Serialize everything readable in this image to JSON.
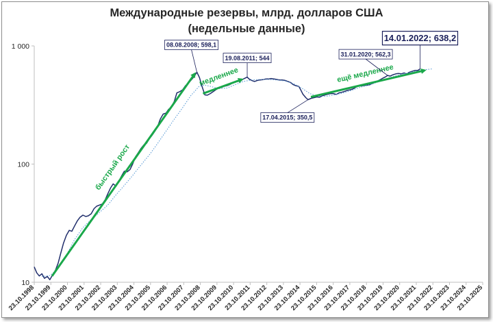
{
  "chart_data": {
    "type": "line",
    "title_line1": "Международные резервы, млрд. долларов США",
    "title_line2": "(недельные данные)",
    "y_scale": "log",
    "ylim": [
      10,
      1000
    ],
    "y_ticks": [
      {
        "value": 10,
        "label": "10"
      },
      {
        "value": 100,
        "label": "100"
      },
      {
        "value": 1000,
        "label": "1 000"
      }
    ],
    "x_range": [
      "1998-10-23",
      "2025-10-23"
    ],
    "x_tick_labels": [
      "23.10.1998",
      "23.10.1999",
      "23.10.2000",
      "23.10.2001",
      "23.10.2002",
      "23.10.2003",
      "23.10.2004",
      "23.10.2005",
      "23.10.2006",
      "23.10.2007",
      "23.10.2008",
      "23.10.2009",
      "23.10.2010",
      "23.10.2011",
      "23.10.2012",
      "23.10.2013",
      "23.10.2014",
      "23.10.2015",
      "23.10.2016",
      "23.10.2017",
      "23.10.2018",
      "23.10.2019",
      "23.10.2020",
      "23.10.2021",
      "23.10.2022",
      "23.10.2023",
      "23.10.2024",
      "23.10.2025"
    ],
    "series": [
      {
        "color": "#1f2d6b",
        "points": [
          [
            "1998-10-23",
            13.5
          ],
          [
            "1998-12-18",
            12.0
          ],
          [
            "1999-02-12",
            11.3
          ],
          [
            "1999-04-09",
            11.8
          ],
          [
            "1999-06-04",
            10.8
          ],
          [
            "1999-08-06",
            11.2
          ],
          [
            "1999-10-01",
            10.5
          ],
          [
            "1999-12-03",
            11.6
          ],
          [
            "2000-02-04",
            12.7
          ],
          [
            "2000-03-31",
            14.5
          ],
          [
            "2000-05-26",
            17.5
          ],
          [
            "2000-07-28",
            21.5
          ],
          [
            "2000-09-29",
            25.0
          ],
          [
            "2000-12-01",
            27.5
          ],
          [
            "2001-01-26",
            27.0
          ],
          [
            "2001-03-30",
            30.0
          ],
          [
            "2001-05-25",
            33.0
          ],
          [
            "2001-07-27",
            35.5
          ],
          [
            "2001-09-28",
            37.0
          ],
          [
            "2001-11-30",
            36.0
          ],
          [
            "2002-01-25",
            36.5
          ],
          [
            "2002-03-29",
            38.0
          ],
          [
            "2002-05-31",
            42.0
          ],
          [
            "2002-07-26",
            44.0
          ],
          [
            "2002-09-27",
            45.0
          ],
          [
            "2002-11-29",
            46.0
          ],
          [
            "2003-01-31",
            50.0
          ],
          [
            "2003-03-28",
            56.0
          ],
          [
            "2003-05-30",
            63.0
          ],
          [
            "2003-07-25",
            68.0
          ],
          [
            "2003-09-26",
            65.0
          ],
          [
            "2003-11-28",
            72.0
          ],
          [
            "2004-01-30",
            80.0
          ],
          [
            "2004-03-26",
            87.0
          ],
          [
            "2004-05-28",
            86.0
          ],
          [
            "2004-07-30",
            90.0
          ],
          [
            "2004-09-24",
            100.0
          ],
          [
            "2004-11-26",
            115.0
          ],
          [
            "2005-01-28",
            125.0
          ],
          [
            "2005-03-25",
            135.0
          ],
          [
            "2005-05-27",
            145.0
          ],
          [
            "2005-07-29",
            150.0
          ],
          [
            "2005-09-30",
            165.0
          ],
          [
            "2005-11-25",
            175.0
          ],
          [
            "2006-01-27",
            190.0
          ],
          [
            "2006-03-31",
            210.0
          ],
          [
            "2006-05-26",
            240.0
          ],
          [
            "2006-07-28",
            265.0
          ],
          [
            "2006-09-29",
            270.0
          ],
          [
            "2006-11-24",
            290.0
          ],
          [
            "2007-01-26",
            305.0
          ],
          [
            "2007-03-30",
            340.0
          ],
          [
            "2007-05-25",
            400.0
          ],
          [
            "2007-07-27",
            410.0
          ],
          [
            "2007-09-28",
            425.0
          ],
          [
            "2007-11-30",
            460.0
          ],
          [
            "2008-01-25",
            480.0
          ],
          [
            "2008-03-28",
            510.0
          ],
          [
            "2008-05-30",
            545.0
          ],
          [
            "2008-08-08",
            598.1
          ],
          [
            "2008-10-03",
            540.0
          ],
          [
            "2008-11-28",
            455.0
          ],
          [
            "2009-01-30",
            385.0
          ],
          [
            "2009-03-27",
            383.0
          ],
          [
            "2009-05-29",
            395.0
          ],
          [
            "2009-07-31",
            410.0
          ],
          [
            "2009-09-25",
            425.0
          ],
          [
            "2009-11-27",
            440.0
          ],
          [
            "2010-01-29",
            445.0
          ],
          [
            "2010-03-26",
            455.0
          ],
          [
            "2010-05-28",
            460.0
          ],
          [
            "2010-07-30",
            470.0
          ],
          [
            "2010-09-24",
            485.0
          ],
          [
            "2010-11-26",
            495.0
          ],
          [
            "2011-01-28",
            500.0
          ],
          [
            "2011-03-25",
            505.0
          ],
          [
            "2011-05-27",
            525.0
          ],
          [
            "2011-08-19",
            544.0
          ],
          [
            "2011-09-30",
            525.0
          ],
          [
            "2011-11-25",
            510.0
          ],
          [
            "2012-01-27",
            500.0
          ],
          [
            "2012-03-30",
            510.0
          ],
          [
            "2012-05-25",
            515.0
          ],
          [
            "2012-07-27",
            518.0
          ],
          [
            "2012-09-28",
            525.0
          ],
          [
            "2012-11-30",
            525.0
          ],
          [
            "2013-01-25",
            530.0
          ],
          [
            "2013-03-29",
            525.0
          ],
          [
            "2013-05-31",
            520.0
          ],
          [
            "2013-07-26",
            515.0
          ],
          [
            "2013-09-27",
            515.0
          ],
          [
            "2013-11-29",
            510.0
          ],
          [
            "2014-01-31",
            500.0
          ],
          [
            "2014-03-28",
            490.0
          ],
          [
            "2014-05-30",
            470.0
          ],
          [
            "2014-07-25",
            460.0
          ],
          [
            "2014-09-26",
            455.0
          ],
          [
            "2014-10-31",
            430.0
          ],
          [
            "2014-12-26",
            390.0
          ],
          [
            "2015-02-27",
            365.0
          ],
          [
            "2015-04-17",
            350.5
          ],
          [
            "2015-06-26",
            360.0
          ],
          [
            "2015-08-28",
            365.0
          ],
          [
            "2015-10-30",
            370.0
          ],
          [
            "2015-12-25",
            368.0
          ],
          [
            "2016-02-26",
            378.0
          ],
          [
            "2016-04-29",
            385.0
          ],
          [
            "2016-06-24",
            390.0
          ],
          [
            "2016-08-26",
            395.0
          ],
          [
            "2016-10-28",
            395.0
          ],
          [
            "2016-12-30",
            388.0
          ],
          [
            "2017-02-24",
            400.0
          ],
          [
            "2017-04-28",
            405.0
          ],
          [
            "2017-06-30",
            412.0
          ],
          [
            "2017-08-25",
            420.0
          ],
          [
            "2017-10-27",
            425.0
          ],
          [
            "2017-12-29",
            432.0
          ],
          [
            "2018-02-23",
            445.0
          ],
          [
            "2018-04-27",
            460.0
          ],
          [
            "2018-06-29",
            458.0
          ],
          [
            "2018-08-31",
            462.0
          ],
          [
            "2018-10-26",
            465.0
          ],
          [
            "2018-12-28",
            468.0
          ],
          [
            "2019-02-22",
            480.0
          ],
          [
            "2019-04-26",
            490.0
          ],
          [
            "2019-06-28",
            505.0
          ],
          [
            "2019-08-30",
            520.0
          ],
          [
            "2019-10-25",
            535.0
          ],
          [
            "2019-12-27",
            550.0
          ],
          [
            "2020-01-31",
            562.3
          ],
          [
            "2020-03-27",
            555.0
          ],
          [
            "2020-05-29",
            570.0
          ],
          [
            "2020-07-31",
            580.0
          ],
          [
            "2020-09-25",
            585.0
          ],
          [
            "2020-11-27",
            580.0
          ],
          [
            "2021-01-29",
            590.0
          ],
          [
            "2021-03-26",
            580.0
          ],
          [
            "2021-05-28",
            600.0
          ],
          [
            "2021-07-30",
            610.0
          ],
          [
            "2021-09-24",
            620.0
          ],
          [
            "2021-11-26",
            620.0
          ],
          [
            "2022-01-14",
            638.2
          ]
        ]
      },
      {
        "color": "#5b9bd5",
        "dashed": true,
        "points": [
          [
            "1999-04-09",
            11.2
          ],
          [
            "1999-10-01",
            11.4
          ],
          [
            "2000-03-31",
            13.0
          ],
          [
            "2000-09-29",
            17.0
          ],
          [
            "2001-03-30",
            23.0
          ],
          [
            "2001-09-28",
            29.0
          ],
          [
            "2002-03-29",
            34.0
          ],
          [
            "2002-09-27",
            39.0
          ],
          [
            "2003-03-28",
            45.0
          ],
          [
            "2003-09-26",
            55.0
          ],
          [
            "2004-03-26",
            66.0
          ],
          [
            "2004-09-24",
            80.0
          ],
          [
            "2005-03-25",
            98.0
          ],
          [
            "2005-09-30",
            120.0
          ],
          [
            "2006-03-31",
            150.0
          ],
          [
            "2006-09-29",
            190.0
          ],
          [
            "2007-03-30",
            240.0
          ],
          [
            "2007-09-28",
            300.0
          ],
          [
            "2008-03-28",
            380.0
          ],
          [
            "2008-09-26",
            455.0
          ],
          [
            "2009-01-30",
            465.0
          ],
          [
            "2009-05-29",
            455.0
          ],
          [
            "2009-11-27",
            435.0
          ],
          [
            "2010-05-28",
            440.0
          ],
          [
            "2010-11-26",
            470.0
          ],
          [
            "2011-05-27",
            500.0
          ],
          [
            "2011-11-25",
            515.0
          ],
          [
            "2012-05-25",
            520.0
          ],
          [
            "2012-11-30",
            520.0
          ],
          [
            "2013-05-31",
            515.0
          ],
          [
            "2013-11-29",
            505.0
          ],
          [
            "2014-05-30",
            480.0
          ],
          [
            "2014-11-28",
            440.0
          ],
          [
            "2015-05-29",
            395.0
          ],
          [
            "2015-11-27",
            375.0
          ],
          [
            "2016-05-27",
            375.0
          ],
          [
            "2016-11-25",
            385.0
          ],
          [
            "2017-05-26",
            400.0
          ],
          [
            "2017-11-24",
            420.0
          ],
          [
            "2018-05-25",
            445.0
          ],
          [
            "2018-11-30",
            465.0
          ],
          [
            "2019-05-31",
            490.0
          ],
          [
            "2019-11-29",
            520.0
          ],
          [
            "2020-05-29",
            550.0
          ],
          [
            "2020-11-27",
            575.0
          ],
          [
            "2021-05-28",
            595.0
          ],
          [
            "2021-11-26",
            615.0
          ],
          [
            "2022-05-27",
            630.0
          ],
          [
            "2022-10-28",
            640.0
          ]
        ]
      }
    ],
    "callouts": [
      {
        "text": "08.08.2008; 598,1",
        "date": "2008-08-08",
        "value": 598.1,
        "big": false
      },
      {
        "text": "19.08.2011; 544",
        "date": "2011-08-19",
        "value": 544,
        "big": false
      },
      {
        "text": "17.04.2015; 350,5",
        "date": "2015-04-17",
        "value": 350.5,
        "big": false
      },
      {
        "text": "31.01.2020; 562,3",
        "date": "2020-01-31",
        "value": 562.3,
        "big": false
      },
      {
        "text": "14.01.2022; 638,2",
        "date": "2022-01-14",
        "value": 638.2,
        "big": true
      }
    ],
    "annotations": [
      {
        "text": "быстрый рост",
        "color": "#1aa84a",
        "arrow_from": [
          "1999-11-20",
          11.3
        ],
        "arrow_to": [
          "2008-06-20",
          580
        ]
      },
      {
        "text": "медленнее",
        "color": "#1aa84a",
        "arrow_from": [
          "2008-12-20",
          395
        ],
        "arrow_to": [
          "2011-04-20",
          520
        ]
      },
      {
        "text": "ещё медленнее",
        "color": "#1aa84a",
        "arrow_from": [
          "2015-06-20",
          370
        ],
        "arrow_to": [
          "2022-04-20",
          620
        ]
      }
    ],
    "grid": false,
    "legend": "none"
  }
}
